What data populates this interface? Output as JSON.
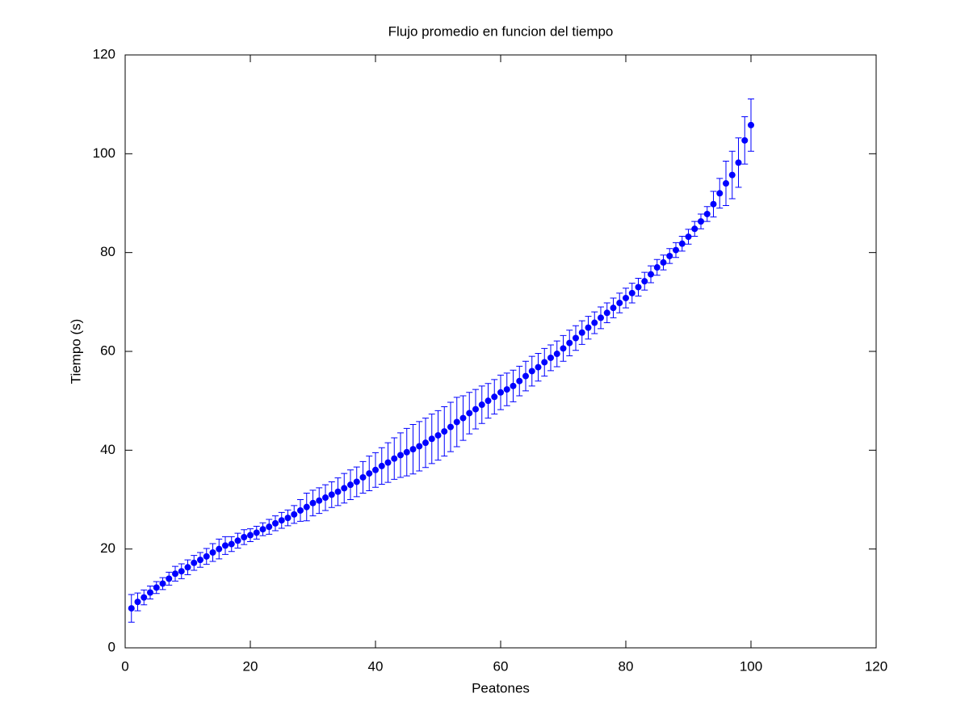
{
  "chart_data": {
    "type": "errorbar_scatter",
    "title": "Flujo promedio en funcion del tiempo",
    "xlabel": "Peatones",
    "ylabel": "Tiempo (s)",
    "color": "#0000ff",
    "x": [
      1,
      2,
      3,
      4,
      5,
      6,
      7,
      8,
      9,
      10,
      11,
      12,
      13,
      14,
      15,
      16,
      17,
      18,
      19,
      20,
      21,
      22,
      23,
      24,
      25,
      26,
      27,
      28,
      29,
      30,
      31,
      32,
      33,
      34,
      35,
      36,
      37,
      38,
      39,
      40,
      41,
      42,
      43,
      44,
      45,
      46,
      47,
      48,
      49,
      50,
      51,
      52,
      53,
      54,
      55,
      56,
      57,
      58,
      59,
      60,
      61,
      62,
      63,
      64,
      65,
      66,
      67,
      68,
      69,
      70,
      71,
      72,
      73,
      74,
      75,
      76,
      77,
      78,
      79,
      80,
      81,
      82,
      83,
      84,
      85,
      86,
      87,
      88,
      89,
      90,
      91,
      92,
      93,
      94,
      95,
      96,
      97,
      98,
      99,
      100
    ],
    "values": [
      8,
      9.3,
      10.2,
      11.2,
      12.2,
      13,
      14,
      15,
      15.5,
      16.3,
      17.2,
      17.8,
      18.5,
      19.3,
      20,
      20.7,
      21,
      21.7,
      22.4,
      22.8,
      23.3,
      24,
      24.5,
      25.2,
      25.8,
      26.3,
      27,
      27.8,
      28.5,
      29.3,
      29.8,
      30.4,
      31,
      31.6,
      32.3,
      33,
      33.6,
      34.5,
      35.3,
      36,
      36.8,
      37.5,
      38.3,
      39,
      39.6,
      40.2,
      40.8,
      41.5,
      42.3,
      43,
      43.8,
      44.7,
      45.7,
      46.5,
      47.5,
      48.3,
      49.2,
      50,
      50.8,
      51.7,
      52.3,
      53,
      54,
      55,
      56,
      56.8,
      57.8,
      58.7,
      59.5,
      60.6,
      61.7,
      62.7,
      63.8,
      64.8,
      65.8,
      66.8,
      67.8,
      68.8,
      69.8,
      70.8,
      71.8,
      73,
      74.2,
      75.6,
      77,
      78,
      79.3,
      80.5,
      81.8,
      83.2,
      84.8,
      86.3,
      87.8,
      89.8,
      92,
      94,
      95.7,
      98.2,
      102.7,
      105.8
    ],
    "errors": [
      2.8,
      1.8,
      1.5,
      1.3,
      1.2,
      1.2,
      1.3,
      1.5,
      1.5,
      1.5,
      1.5,
      1.5,
      1.6,
      1.8,
      2,
      1.8,
      1.5,
      1.5,
      1.5,
      1.3,
      1.3,
      1.3,
      1.5,
      1.5,
      1.6,
      1.6,
      1.8,
      2.2,
      2.8,
      2.6,
      2.6,
      2.6,
      2.6,
      2.8,
      3,
      3,
      3,
      3.2,
      3.5,
      3.5,
      3.7,
      4,
      4.2,
      4.5,
      4.8,
      5,
      5,
      5,
      5,
      5,
      5,
      5,
      5,
      4.5,
      4.2,
      4,
      3.8,
      3.5,
      3.5,
      3.5,
      3.3,
      3.2,
      3,
      3,
      3,
      2.8,
      2.8,
      2.6,
      2.6,
      2.6,
      2.6,
      2.5,
      2.4,
      2.3,
      2.2,
      2.2,
      2,
      2,
      2,
      2,
      2,
      1.8,
      1.8,
      1.7,
      1.6,
      1.5,
      1.5,
      1.5,
      1.5,
      1.5,
      1.5,
      1.5,
      1.5,
      2.6,
      3,
      4.5,
      4.8,
      5,
      4.8,
      5.3
    ],
    "xlim": [
      0,
      120
    ],
    "xticks": [
      0,
      20,
      40,
      60,
      80,
      100,
      120
    ],
    "ylim": [
      0,
      120
    ],
    "yticks": [
      0,
      20,
      40,
      60,
      80,
      100,
      120
    ]
  }
}
